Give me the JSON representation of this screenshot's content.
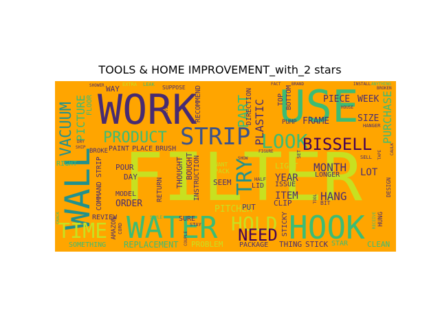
{
  "title": "TOOLS & HOME IMPROVEMENT_with_2 stars",
  "background_color": "#ffa500",
  "palette": {
    "purple": "#472b72",
    "darkblue": "#3b528b",
    "teal": "#21918c",
    "green": "#3cbc74",
    "lime": "#c8e020",
    "darkpurple": "#440154",
    "olive": "#8c8c3c"
  },
  "words": {
    "work": "WORK",
    "use": "USE",
    "filter": "FILTER",
    "wall": "WALL",
    "water": "WATER",
    "hook": "HOOK",
    "strip": "STRIP",
    "product": "PRODUCT",
    "look": "LOOK",
    "bissell": "BISSELL",
    "time": "TIME",
    "hold": "HOLD",
    "need": "NEED",
    "try": "TRY",
    "part": "PART",
    "vacuum": "VACUUM",
    "plastic": "PLASTIC",
    "picture": "PICTURE",
    "purchase": "PURCHASE",
    "hang": "HANG",
    "month": "MONTH",
    "frame": "FRAME",
    "piece": "PIECE",
    "week": "WEEK",
    "size": "SIZE",
    "item": "ITEM",
    "year": "YEAR",
    "lot": "LOT",
    "order": "ORDER",
    "pitcher": "PITCHER",
    "replacement": "REPLACEMENT",
    "something": "SOMETHING",
    "problem": "PROBLEM",
    "package": "PACKAGE",
    "thing": "THING",
    "stick": "STICK",
    "star": "STAR",
    "clean": "CLEAN",
    "review": "REVIEW",
    "sticky": "STICKY",
    "command_strip": "COMMAND STRIP",
    "brush": "BRUSH",
    "paint": "PAINT",
    "place": "PLACE",
    "right": "RIGHT",
    "pour": "POUR",
    "day": "DAY",
    "model": "MODEL",
    "return": "RETURN",
    "thought": "THOUGHT",
    "bought": "BOUGHT",
    "instruction": "INSTRUCTION",
    "recommend": "RECOMMEND",
    "direction": "DIRECTION",
    "seem": "SEEM",
    "lid": "LID",
    "put": "PUT",
    "sure": "SURE",
    "light": "LIGHT",
    "issue": "ISSUE",
    "clip": "CLIP",
    "longer": "LONGER",
    "design": "DESIGN",
    "hung": "HUNG",
    "bit": "BIT",
    "top": "TOP",
    "bottom": "BOTTOM",
    "amazon": "AMAZON",
    "broke": "BROKE",
    "way": "WAY",
    "suppose": "SUPPOSE",
    "floor": "FLOOR",
    "shower": "SHOWER",
    "leak": "LEAK",
    "extra": "EXTRA",
    "pump": "PUMP",
    "hanger": "HANGER",
    "half": "HALF",
    "pack": "PACK",
    "want": "WANT",
    "cord": "CORD",
    "stay": "STAY",
    "fact": "FACT",
    "install": "INSTALL",
    "set": "SET",
    "tool": "TOOL",
    "sell": "SELL",
    "figure": "FIGURE",
    "show": "SHOW",
    "broken": "BROKEN",
    "dry": "DRY",
    "ship": "SHIP",
    "crack": "CRACK",
    "couple": "COUPLE",
    "receive": "RECEIVE",
    "style": "STYLE",
    "device": "DEVICE",
    "tape": "TAPE",
    "caulk": "CAULK",
    "house": "HOUSE",
    "brand": "BRAND",
    "anything": "ANYTHING"
  }
}
